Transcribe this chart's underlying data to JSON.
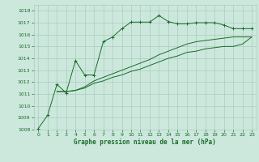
{
  "background_color": "#cce8dd",
  "grid_color": "#aaccbb",
  "line_color": "#1a6b2a",
  "xlabel": "Graphe pression niveau de la mer (hPa)",
  "ylim": [
    1008,
    1018.5
  ],
  "xlim": [
    -0.5,
    23.5
  ],
  "yticks": [
    1008,
    1009,
    1010,
    1011,
    1012,
    1013,
    1014,
    1015,
    1016,
    1017,
    1018
  ],
  "xticks": [
    0,
    1,
    2,
    3,
    4,
    5,
    6,
    7,
    8,
    9,
    10,
    11,
    12,
    13,
    14,
    15,
    16,
    17,
    18,
    19,
    20,
    21,
    22,
    23
  ],
  "s1_x": [
    0,
    1,
    2,
    3,
    4,
    5,
    6,
    7,
    8,
    9,
    10,
    11,
    12,
    13,
    14,
    15,
    16,
    17,
    18,
    19,
    20,
    21,
    22,
    23
  ],
  "s1_y": [
    1008.1,
    1009.2,
    1011.8,
    1011.1,
    1013.8,
    1012.6,
    1012.6,
    1015.4,
    1015.8,
    1016.5,
    1017.05,
    1017.05,
    1017.05,
    1017.6,
    1017.1,
    1016.9,
    1016.9,
    1017.0,
    1017.0,
    1017.0,
    1016.8,
    1016.5,
    1016.5,
    1016.5
  ],
  "s2_x": [
    2,
    3,
    4,
    5,
    6,
    7,
    8,
    9,
    10,
    11,
    12,
    13,
    14,
    15,
    16,
    17,
    18,
    19,
    20,
    21,
    22,
    23
  ],
  "s2_y": [
    1011.2,
    1011.2,
    1011.3,
    1011.6,
    1012.1,
    1012.4,
    1012.7,
    1013.0,
    1013.3,
    1013.6,
    1013.9,
    1014.3,
    1014.6,
    1014.9,
    1015.2,
    1015.4,
    1015.5,
    1015.6,
    1015.7,
    1015.8,
    1015.8,
    1015.8
  ],
  "s3_x": [
    2,
    3,
    4,
    5,
    6,
    7,
    8,
    9,
    10,
    11,
    12,
    13,
    14,
    15,
    16,
    17,
    18,
    19,
    20,
    21,
    22,
    23
  ],
  "s3_y": [
    1011.2,
    1011.2,
    1011.3,
    1011.5,
    1011.9,
    1012.1,
    1012.4,
    1012.6,
    1012.9,
    1013.1,
    1013.4,
    1013.7,
    1014.0,
    1014.2,
    1014.5,
    1014.6,
    1014.8,
    1014.9,
    1015.0,
    1015.0,
    1015.2,
    1015.8
  ]
}
